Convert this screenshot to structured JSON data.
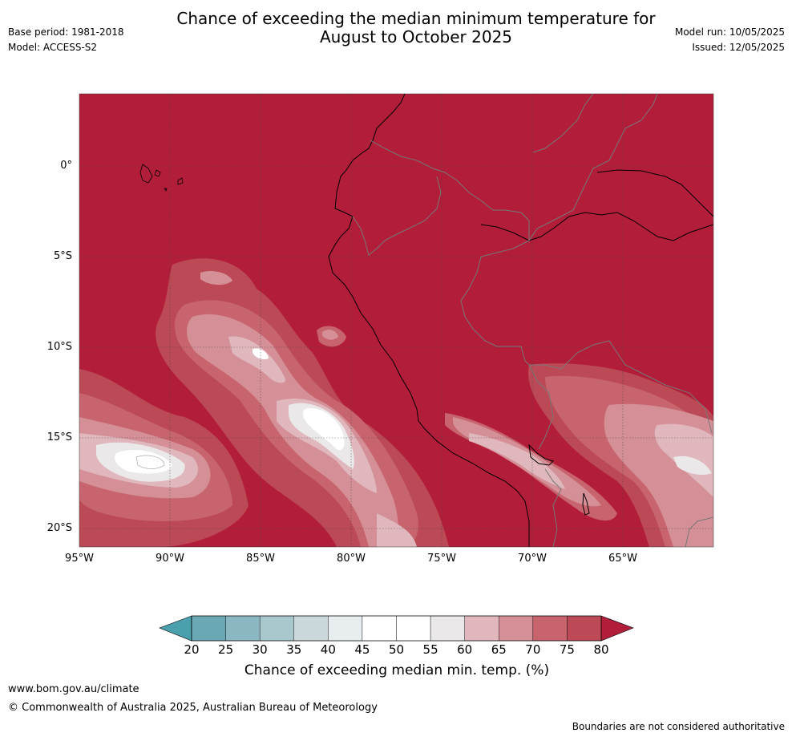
{
  "header": {
    "title_line1": "Chance of exceeding the median minimum temperature for",
    "title_line2": "August to October 2025",
    "base_period": "Base period: 1981-2018",
    "model": "Model: ACCESS-S2",
    "model_run": "Model run: 10/05/2025",
    "issued": "Issued: 12/05/2025"
  },
  "map": {
    "lat_labels": [
      "0°",
      "5°S",
      "10°S",
      "15°S",
      "20°S"
    ],
    "lon_labels": [
      "95°W",
      "90°W",
      "85°W",
      "80°W",
      "75°W",
      "70°W",
      "65°W"
    ]
  },
  "colorbar": {
    "title": "Chance of exceeding median min. temp. (%)",
    "ticks": [
      "20",
      "25",
      "30",
      "35",
      "40",
      "45",
      "50",
      "55",
      "60",
      "65",
      "70",
      "75",
      "80"
    ],
    "colors": [
      "#6aa9b4",
      "#8ab7c1",
      "#a8c8cd",
      "#cad8dc",
      "#e8edef",
      "#ffffff",
      "#ffffff",
      "#eae8e9",
      "#dfb7bc",
      "#d59097",
      "#c8646d",
      "#bc4a56"
    ],
    "under_color": "#4aa0ad",
    "over_color": "#b21e3a"
  },
  "footer": {
    "website": "www.bom.gov.au/climate",
    "copyright": "© Commonwealth of Australia 2025, Australian Bureau of Meteorology",
    "disclaimer": "Boundaries are not considered authoritative"
  }
}
